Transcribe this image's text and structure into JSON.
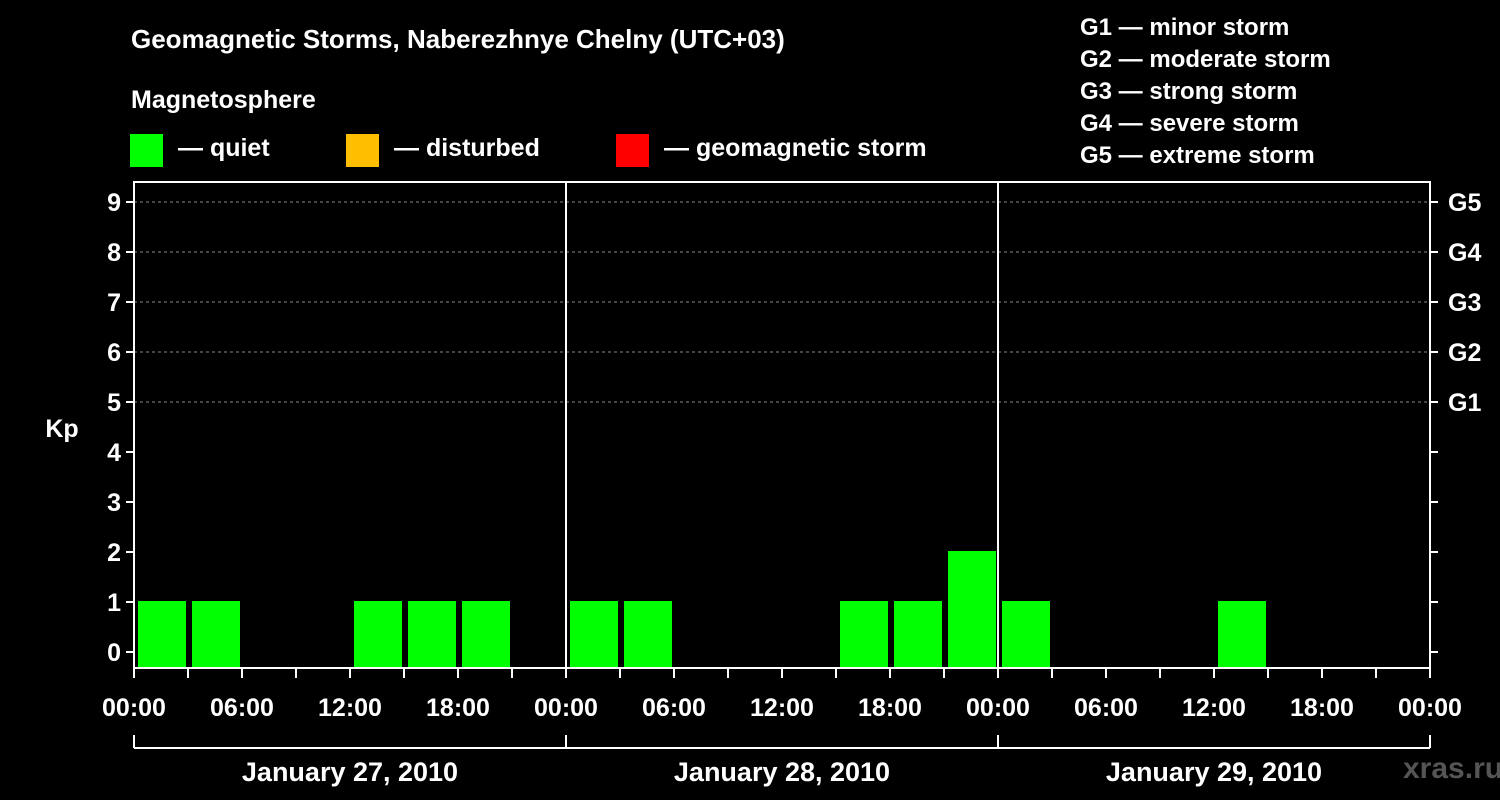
{
  "header": {
    "title": "Geomagnetic Storms, Naberezhnye Chelny (UTC+03)",
    "magnetosphere_label": "Magnetosphere",
    "legend": [
      {
        "label": "— quiet",
        "color": "#00ff00"
      },
      {
        "label": "— disturbed",
        "color": "#ffbf00"
      },
      {
        "label": "— geomagnetic storm",
        "color": "#ff0000"
      }
    ]
  },
  "storm_scale": [
    "G1 — minor storm",
    "G2 — moderate storm",
    "G3 — strong storm",
    "G4 — severe storm",
    "G5 — extreme storm"
  ],
  "chart_data": {
    "type": "bar",
    "title": "Geomagnetic Storms, Naberezhnye Chelny (UTC+03)",
    "ylabel": "Kp",
    "ylim": [
      0,
      9
    ],
    "y_ticks": [
      "0",
      "1",
      "2",
      "3",
      "4",
      "5",
      "6",
      "7",
      "8",
      "9"
    ],
    "right_axis_labels": [
      {
        "kp": 5,
        "label": "G1"
      },
      {
        "kp": 6,
        "label": "G2"
      },
      {
        "kp": 7,
        "label": "G3"
      },
      {
        "kp": 8,
        "label": "G4"
      },
      {
        "kp": 9,
        "label": "G5"
      }
    ],
    "x_tick_labels": [
      "00:00",
      "06:00",
      "12:00",
      "18:00",
      "00:00",
      "06:00",
      "12:00",
      "18:00",
      "00:00",
      "06:00",
      "12:00",
      "18:00",
      "00:00"
    ],
    "days": [
      "January 27, 2010",
      "January 28, 2010",
      "January 29, 2010"
    ],
    "interval_hours": 3,
    "series": [
      {
        "name": "Kp",
        "values": [
          1,
          1,
          0,
          0,
          1,
          1,
          1,
          0,
          1,
          1,
          0,
          0,
          0,
          1,
          1,
          2,
          1,
          0,
          0,
          0,
          1,
          0,
          0,
          0
        ]
      }
    ],
    "grid": true
  },
  "watermark": "xras.ru"
}
